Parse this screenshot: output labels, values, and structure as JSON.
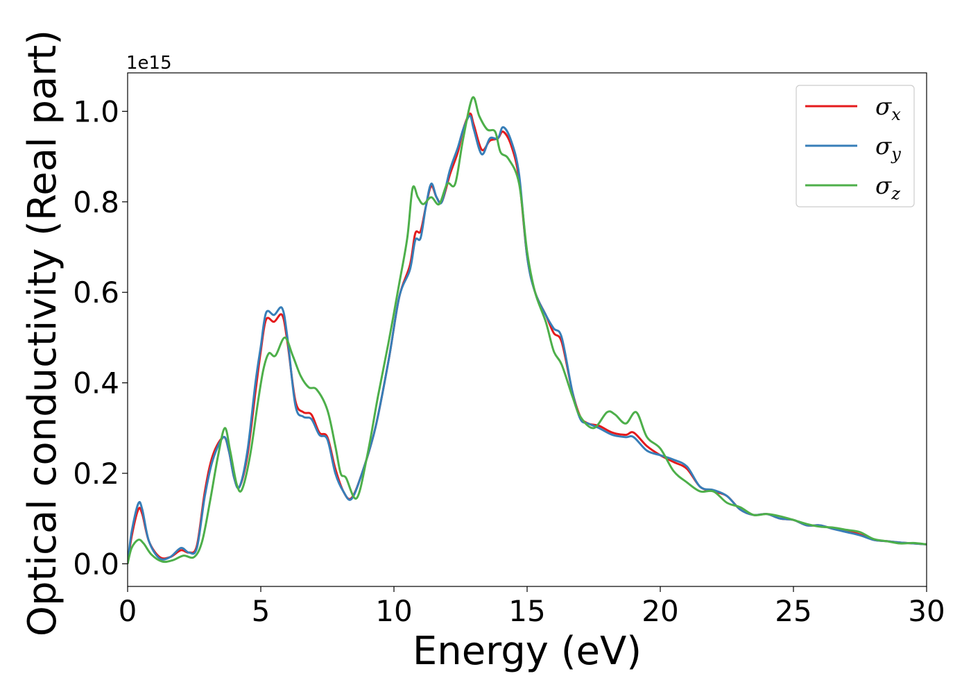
{
  "chart_data": {
    "type": "line",
    "xlabel": "Energy (eV)",
    "ylabel": "Optical conductivity (Real part)",
    "offset_text": "1e15",
    "xlim": [
      0,
      30
    ],
    "ylim": [
      -0.05,
      1.085
    ],
    "xticks": [
      0,
      5,
      10,
      15,
      20,
      25,
      30
    ],
    "xtick_labels": [
      "0",
      "5",
      "10",
      "15",
      "20",
      "25",
      "30"
    ],
    "yticks": [
      0.0,
      0.2,
      0.4,
      0.6,
      0.8,
      1.0
    ],
    "ytick_labels": [
      "0.0",
      "0.2",
      "0.4",
      "0.6",
      "0.8",
      "1.0"
    ],
    "grid": false,
    "legend_position": "top-right",
    "series": [
      {
        "name": "σx",
        "symbol": "σ",
        "subscript": "x",
        "color": "#e41a1c",
        "points": [
          [
            0,
            0
          ],
          [
            0.15,
            0.06
          ],
          [
            0.4,
            0.12
          ],
          [
            0.55,
            0.11
          ],
          [
            0.8,
            0.05
          ],
          [
            1.2,
            0.015
          ],
          [
            1.6,
            0.015
          ],
          [
            2.0,
            0.03
          ],
          [
            2.3,
            0.025
          ],
          [
            2.6,
            0.04
          ],
          [
            2.9,
            0.16
          ],
          [
            3.2,
            0.24
          ],
          [
            3.6,
            0.28
          ],
          [
            3.8,
            0.25
          ],
          [
            4.0,
            0.19
          ],
          [
            4.2,
            0.17
          ],
          [
            4.5,
            0.24
          ],
          [
            4.8,
            0.38
          ],
          [
            5.0,
            0.47
          ],
          [
            5.2,
            0.54
          ],
          [
            5.5,
            0.535
          ],
          [
            5.8,
            0.55
          ],
          [
            6.0,
            0.49
          ],
          [
            6.3,
            0.36
          ],
          [
            6.6,
            0.335
          ],
          [
            6.9,
            0.33
          ],
          [
            7.2,
            0.29
          ],
          [
            7.5,
            0.28
          ],
          [
            7.8,
            0.21
          ],
          [
            8.1,
            0.16
          ],
          [
            8.4,
            0.145
          ],
          [
            8.8,
            0.2
          ],
          [
            9.3,
            0.3
          ],
          [
            9.8,
            0.45
          ],
          [
            10.2,
            0.59
          ],
          [
            10.6,
            0.66
          ],
          [
            10.8,
            0.73
          ],
          [
            11.0,
            0.735
          ],
          [
            11.2,
            0.79
          ],
          [
            11.4,
            0.835
          ],
          [
            11.6,
            0.81
          ],
          [
            11.8,
            0.8
          ],
          [
            12.1,
            0.86
          ],
          [
            12.4,
            0.91
          ],
          [
            12.6,
            0.96
          ],
          [
            12.85,
            0.995
          ],
          [
            13.0,
            0.97
          ],
          [
            13.3,
            0.915
          ],
          [
            13.6,
            0.935
          ],
          [
            13.9,
            0.94
          ],
          [
            14.1,
            0.955
          ],
          [
            14.4,
            0.925
          ],
          [
            14.7,
            0.85
          ],
          [
            15.0,
            0.68
          ],
          [
            15.3,
            0.6
          ],
          [
            15.7,
            0.55
          ],
          [
            16.0,
            0.51
          ],
          [
            16.3,
            0.49
          ],
          [
            16.7,
            0.38
          ],
          [
            17.0,
            0.325
          ],
          [
            17.3,
            0.31
          ],
          [
            17.7,
            0.305
          ],
          [
            18.2,
            0.29
          ],
          [
            18.7,
            0.285
          ],
          [
            19.0,
            0.29
          ],
          [
            19.5,
            0.26
          ],
          [
            20.0,
            0.24
          ],
          [
            20.5,
            0.225
          ],
          [
            21.0,
            0.21
          ],
          [
            21.5,
            0.17
          ],
          [
            22.0,
            0.16
          ],
          [
            22.5,
            0.15
          ],
          [
            23.0,
            0.12
          ],
          [
            23.5,
            0.108
          ],
          [
            24.0,
            0.11
          ],
          [
            24.5,
            0.1
          ],
          [
            25.0,
            0.097
          ],
          [
            25.5,
            0.085
          ],
          [
            26.0,
            0.085
          ],
          [
            26.5,
            0.077
          ],
          [
            27.0,
            0.072
          ],
          [
            27.5,
            0.065
          ],
          [
            28.0,
            0.053
          ],
          [
            28.5,
            0.05
          ],
          [
            29.0,
            0.047
          ],
          [
            29.5,
            0.045
          ],
          [
            30.0,
            0.043
          ]
        ]
      },
      {
        "name": "σy",
        "symbol": "σ",
        "subscript": "y",
        "color": "#377eb8",
        "points": [
          [
            0,
            0
          ],
          [
            0.15,
            0.07
          ],
          [
            0.4,
            0.133
          ],
          [
            0.55,
            0.12
          ],
          [
            0.8,
            0.05
          ],
          [
            1.2,
            0.012
          ],
          [
            1.6,
            0.015
          ],
          [
            2.0,
            0.035
          ],
          [
            2.3,
            0.025
          ],
          [
            2.6,
            0.035
          ],
          [
            2.9,
            0.15
          ],
          [
            3.2,
            0.23
          ],
          [
            3.6,
            0.28
          ],
          [
            3.8,
            0.25
          ],
          [
            4.0,
            0.19
          ],
          [
            4.2,
            0.17
          ],
          [
            4.5,
            0.25
          ],
          [
            4.8,
            0.4
          ],
          [
            5.0,
            0.48
          ],
          [
            5.2,
            0.555
          ],
          [
            5.5,
            0.55
          ],
          [
            5.8,
            0.565
          ],
          [
            6.0,
            0.5
          ],
          [
            6.3,
            0.35
          ],
          [
            6.6,
            0.325
          ],
          [
            6.9,
            0.32
          ],
          [
            7.2,
            0.285
          ],
          [
            7.5,
            0.275
          ],
          [
            7.8,
            0.2
          ],
          [
            8.1,
            0.16
          ],
          [
            8.4,
            0.143
          ],
          [
            8.8,
            0.2
          ],
          [
            9.3,
            0.3
          ],
          [
            9.8,
            0.45
          ],
          [
            10.2,
            0.59
          ],
          [
            10.6,
            0.65
          ],
          [
            10.8,
            0.715
          ],
          [
            11.0,
            0.72
          ],
          [
            11.2,
            0.79
          ],
          [
            11.4,
            0.84
          ],
          [
            11.6,
            0.81
          ],
          [
            11.8,
            0.8
          ],
          [
            12.1,
            0.87
          ],
          [
            12.4,
            0.92
          ],
          [
            12.6,
            0.96
          ],
          [
            12.85,
            0.99
          ],
          [
            13.0,
            0.96
          ],
          [
            13.3,
            0.905
          ],
          [
            13.6,
            0.94
          ],
          [
            13.9,
            0.94
          ],
          [
            14.1,
            0.965
          ],
          [
            14.4,
            0.935
          ],
          [
            14.7,
            0.86
          ],
          [
            15.0,
            0.68
          ],
          [
            15.3,
            0.6
          ],
          [
            15.7,
            0.55
          ],
          [
            16.0,
            0.52
          ],
          [
            16.3,
            0.5
          ],
          [
            16.7,
            0.38
          ],
          [
            17.0,
            0.32
          ],
          [
            17.3,
            0.31
          ],
          [
            17.7,
            0.3
          ],
          [
            18.2,
            0.285
          ],
          [
            18.7,
            0.28
          ],
          [
            19.0,
            0.28
          ],
          [
            19.5,
            0.25
          ],
          [
            20.0,
            0.24
          ],
          [
            20.5,
            0.23
          ],
          [
            21.0,
            0.215
          ],
          [
            21.5,
            0.17
          ],
          [
            22.0,
            0.163
          ],
          [
            22.5,
            0.15
          ],
          [
            23.0,
            0.12
          ],
          [
            23.5,
            0.108
          ],
          [
            24.0,
            0.11
          ],
          [
            24.5,
            0.1
          ],
          [
            25.0,
            0.097
          ],
          [
            25.5,
            0.085
          ],
          [
            26.0,
            0.085
          ],
          [
            26.5,
            0.077
          ],
          [
            27.0,
            0.07
          ],
          [
            27.5,
            0.063
          ],
          [
            28.0,
            0.053
          ],
          [
            28.5,
            0.05
          ],
          [
            29.0,
            0.047
          ],
          [
            29.5,
            0.045
          ],
          [
            30.0,
            0.043
          ]
        ]
      },
      {
        "name": "σz",
        "symbol": "σ",
        "subscript": "z",
        "color": "#4daf4a",
        "points": [
          [
            0,
            0
          ],
          [
            0.15,
            0.035
          ],
          [
            0.4,
            0.053
          ],
          [
            0.6,
            0.045
          ],
          [
            0.9,
            0.02
          ],
          [
            1.3,
            0.005
          ],
          [
            1.7,
            0.008
          ],
          [
            2.1,
            0.018
          ],
          [
            2.5,
            0.015
          ],
          [
            2.8,
            0.05
          ],
          [
            3.1,
            0.14
          ],
          [
            3.4,
            0.24
          ],
          [
            3.65,
            0.3
          ],
          [
            3.85,
            0.25
          ],
          [
            4.1,
            0.175
          ],
          [
            4.3,
            0.165
          ],
          [
            4.6,
            0.24
          ],
          [
            4.9,
            0.36
          ],
          [
            5.1,
            0.43
          ],
          [
            5.3,
            0.465
          ],
          [
            5.55,
            0.46
          ],
          [
            5.9,
            0.5
          ],
          [
            6.2,
            0.46
          ],
          [
            6.5,
            0.415
          ],
          [
            6.8,
            0.39
          ],
          [
            7.1,
            0.385
          ],
          [
            7.5,
            0.34
          ],
          [
            7.8,
            0.26
          ],
          [
            8.0,
            0.2
          ],
          [
            8.2,
            0.19
          ],
          [
            8.6,
            0.145
          ],
          [
            9.0,
            0.24
          ],
          [
            9.4,
            0.37
          ],
          [
            9.8,
            0.49
          ],
          [
            10.2,
            0.62
          ],
          [
            10.5,
            0.72
          ],
          [
            10.7,
            0.83
          ],
          [
            10.9,
            0.81
          ],
          [
            11.1,
            0.795
          ],
          [
            11.4,
            0.81
          ],
          [
            11.7,
            0.795
          ],
          [
            12.0,
            0.84
          ],
          [
            12.3,
            0.84
          ],
          [
            12.6,
            0.94
          ],
          [
            12.95,
            1.03
          ],
          [
            13.2,
            0.99
          ],
          [
            13.5,
            0.96
          ],
          [
            13.8,
            0.955
          ],
          [
            14.0,
            0.91
          ],
          [
            14.3,
            0.895
          ],
          [
            14.7,
            0.84
          ],
          [
            15.0,
            0.69
          ],
          [
            15.3,
            0.6
          ],
          [
            15.7,
            0.535
          ],
          [
            16.0,
            0.47
          ],
          [
            16.3,
            0.44
          ],
          [
            16.7,
            0.37
          ],
          [
            17.0,
            0.325
          ],
          [
            17.5,
            0.3
          ],
          [
            18.0,
            0.335
          ],
          [
            18.3,
            0.33
          ],
          [
            18.7,
            0.31
          ],
          [
            19.1,
            0.335
          ],
          [
            19.5,
            0.28
          ],
          [
            20.0,
            0.255
          ],
          [
            20.5,
            0.205
          ],
          [
            21.0,
            0.18
          ],
          [
            21.5,
            0.16
          ],
          [
            22.0,
            0.16
          ],
          [
            22.5,
            0.135
          ],
          [
            23.0,
            0.125
          ],
          [
            23.5,
            0.108
          ],
          [
            24.0,
            0.11
          ],
          [
            24.5,
            0.105
          ],
          [
            25.0,
            0.097
          ],
          [
            25.5,
            0.088
          ],
          [
            26.0,
            0.082
          ],
          [
            26.5,
            0.08
          ],
          [
            27.0,
            0.075
          ],
          [
            27.5,
            0.07
          ],
          [
            28.0,
            0.055
          ],
          [
            28.5,
            0.05
          ],
          [
            29.0,
            0.045
          ],
          [
            29.5,
            0.046
          ],
          [
            30.0,
            0.043
          ]
        ]
      }
    ]
  }
}
